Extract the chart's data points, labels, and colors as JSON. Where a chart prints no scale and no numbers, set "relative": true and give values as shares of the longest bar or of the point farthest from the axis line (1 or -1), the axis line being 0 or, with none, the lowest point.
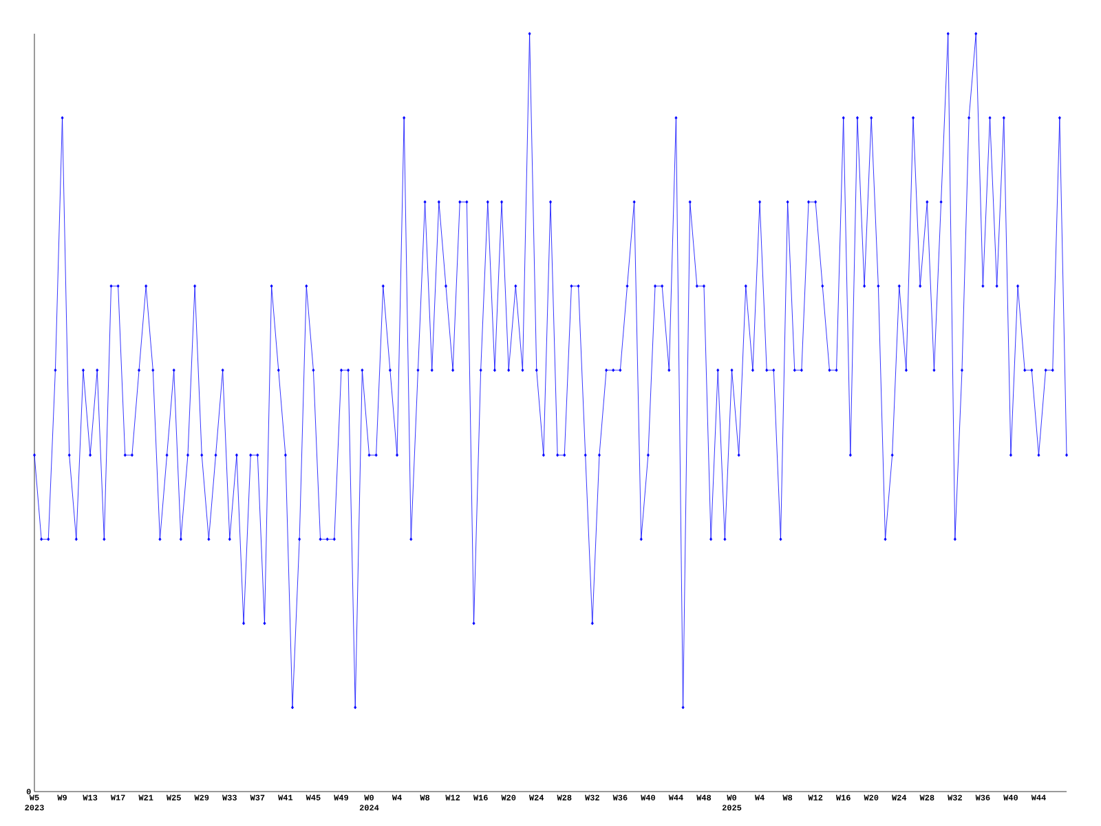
{
  "chart_data": {
    "type": "line",
    "relative": true,
    "color": "#0000ff",
    "marker": "diamond",
    "line_style": "solid",
    "annotations": [
      "0"
    ],
    "categories": [
      "W5 2023",
      null,
      null,
      null,
      "W9",
      null,
      null,
      null,
      "W13",
      null,
      null,
      null,
      "W17",
      null,
      null,
      null,
      "W21",
      null,
      null,
      null,
      "W25",
      null,
      null,
      null,
      "W29",
      null,
      null,
      null,
      "W33",
      null,
      null,
      null,
      "W37",
      null,
      null,
      null,
      "W41",
      null,
      null,
      null,
      "W45",
      null,
      null,
      null,
      "W49",
      null,
      null,
      null,
      "W0 2024",
      null,
      null,
      null,
      "W4",
      null,
      null,
      null,
      "W8",
      null,
      null,
      null,
      "W12",
      null,
      null,
      null,
      "W16",
      null,
      null,
      null,
      "W20",
      null,
      null,
      null,
      "W24",
      null,
      null,
      null,
      "W28",
      null,
      null,
      null,
      "W32",
      null,
      null,
      null,
      "W36",
      null,
      null,
      null,
      "W40",
      null,
      null,
      null,
      "W44",
      null,
      null,
      null,
      "W48",
      null,
      null,
      null,
      "W0 2025",
      null,
      null,
      null,
      "W4",
      null,
      null,
      null,
      "W8",
      null,
      null,
      null,
      "W12",
      null,
      null,
      null,
      "W16",
      null,
      null,
      null,
      "W20",
      null,
      null,
      null,
      "W24",
      null,
      null,
      null,
      "W28",
      null,
      null,
      null,
      "W32",
      null,
      null,
      null,
      "W36",
      null,
      null,
      null,
      "W40",
      null,
      null,
      null,
      "W44",
      null,
      null,
      null,
      null
    ],
    "values": [
      0.444,
      0.333,
      0.333,
      0.556,
      0.889,
      0.444,
      0.333,
      0.556,
      0.444,
      0.556,
      0.333,
      0.667,
      0.667,
      0.444,
      0.444,
      0.556,
      0.667,
      0.556,
      0.333,
      0.444,
      0.556,
      0.333,
      0.444,
      0.667,
      0.444,
      0.333,
      0.444,
      0.556,
      0.333,
      0.444,
      0.222,
      0.444,
      0.444,
      0.222,
      0.667,
      0.556,
      0.444,
      0.111,
      0.333,
      0.667,
      0.556,
      0.333,
      0.333,
      0.333,
      0.556,
      0.556,
      0.111,
      0.556,
      0.444,
      0.444,
      0.667,
      0.556,
      0.444,
      0.889,
      0.333,
      0.556,
      0.778,
      0.556,
      0.778,
      0.667,
      0.556,
      0.778,
      0.778,
      0.222,
      0.556,
      0.778,
      0.556,
      0.778,
      0.556,
      0.667,
      0.556,
      1,
      0.556,
      0.444,
      0.778,
      0.444,
      0.444,
      0.667,
      0.667,
      0.444,
      0.222,
      0.444,
      0.556,
      0.556,
      0.556,
      0.667,
      0.778,
      0.333,
      0.444,
      0.667,
      0.667,
      0.556,
      0.889,
      0.111,
      0.778,
      0.667,
      0.667,
      0.333,
      0.556,
      0.333,
      0.556,
      0.444,
      0.667,
      0.556,
      0.778,
      0.556,
      0.556,
      0.333,
      0.778,
      0.556,
      0.556,
      0.778,
      0.778,
      0.667,
      0.556,
      0.556,
      0.889,
      0.444,
      0.889,
      0.667,
      0.889,
      0.667,
      0.333,
      0.444,
      0.667,
      0.556,
      0.889,
      0.667,
      0.778,
      0.556,
      0.778,
      1,
      0.333,
      0.556,
      0.889,
      1,
      0.667,
      0.889,
      0.667,
      0.889,
      0.444,
      0.667,
      0.556,
      0.556,
      0.444,
      0.556,
      0.556,
      0.889,
      0.444
    ]
  }
}
